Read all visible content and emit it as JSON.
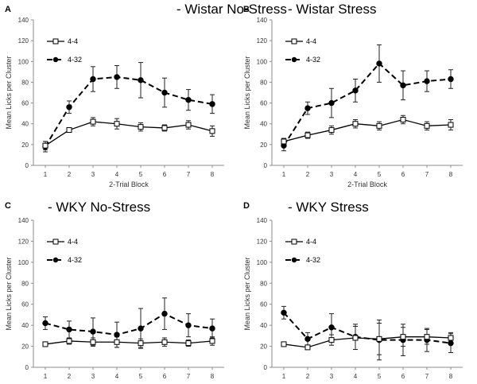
{
  "figure": {
    "chart_data": [
      {
        "panel_letter": "A",
        "type": "line",
        "title": "- Wistar No-Stress",
        "xlabel": "2-Trial Block",
        "ylabel": "Mean Licks per Cluster",
        "x": [
          1,
          2,
          3,
          4,
          5,
          6,
          7,
          8
        ],
        "ylim": [
          0,
          140
        ],
        "yticks": [
          0,
          20,
          40,
          60,
          80,
          100,
          120,
          140
        ],
        "legend_position": "top-left",
        "series": [
          {
            "name": "4-4",
            "marker": "open-square",
            "line": "solid",
            "values": [
              19,
              34,
              42,
              40,
              37,
              36,
              39,
              33
            ],
            "errors": [
              4,
              2,
              4,
              5,
              4,
              3,
              4,
              5
            ]
          },
          {
            "name": "4-32",
            "marker": "filled-circle",
            "line": "dashed",
            "values": [
              18,
              56,
              83,
              85,
              82,
              70,
              63,
              59
            ],
            "errors": [
              5,
              6,
              12,
              11,
              17,
              14,
              10,
              9
            ]
          }
        ]
      },
      {
        "panel_letter": "B",
        "type": "line",
        "title": "- Wistar Stress",
        "xlabel": "2-Trial Block",
        "ylabel": "Mean Licks per Cluster",
        "x": [
          1,
          2,
          3,
          4,
          5,
          6,
          7,
          8
        ],
        "ylim": [
          0,
          140
        ],
        "yticks": [
          0,
          20,
          40,
          60,
          80,
          100,
          120,
          140
        ],
        "legend_position": "top-left",
        "series": [
          {
            "name": "4-4",
            "marker": "open-square",
            "line": "solid",
            "values": [
              23,
              29,
              34,
              40,
              38,
              44,
              38,
              39
            ],
            "errors": [
              3,
              3,
              4,
              4,
              4,
              4,
              4,
              5
            ]
          },
          {
            "name": "4-32",
            "marker": "filled-circle",
            "line": "dashed",
            "values": [
              19,
              55,
              60,
              72,
              98,
              77,
              81,
              83
            ],
            "errors": [
              5,
              6,
              14,
              11,
              18,
              14,
              10,
              9
            ]
          }
        ]
      },
      {
        "panel_letter": "C",
        "type": "line",
        "title": "- WKY No-Stress",
        "xlabel": "",
        "ylabel": "Mean Licks per Cluster",
        "x": [
          1,
          2,
          3,
          4,
          5,
          6,
          7,
          8
        ],
        "ylim": [
          0,
          140
        ],
        "yticks": [
          0,
          20,
          40,
          60,
          80,
          100,
          120,
          140
        ],
        "legend_position": "top-left",
        "series": [
          {
            "name": "4-4",
            "marker": "open-square",
            "line": "solid",
            "values": [
              22,
              25,
              24,
              24,
              23,
              24,
              23,
              25
            ],
            "errors": [
              2,
              3,
              4,
              5,
              4,
              4,
              3,
              4
            ]
          },
          {
            "name": "4-32",
            "marker": "filled-circle",
            "line": "dashed",
            "values": [
              42,
              36,
              34,
              31,
              37,
              51,
              40,
              37
            ],
            "errors": [
              6,
              8,
              13,
              12,
              19,
              15,
              11,
              9
            ]
          }
        ]
      },
      {
        "panel_letter": "D",
        "type": "line",
        "title": "- WKY Stress",
        "xlabel": "",
        "ylabel": "Mean Licks per Cluster",
        "x": [
          1,
          2,
          3,
          4,
          5,
          6,
          7,
          8
        ],
        "ylim": [
          0,
          140
        ],
        "yticks": [
          0,
          20,
          40,
          60,
          80,
          100,
          120,
          140
        ],
        "legend_position": "top-left",
        "series": [
          {
            "name": "4-4",
            "marker": "open-square",
            "line": "solid",
            "values": [
              22,
              19,
              26,
              28,
              27,
              29,
              29,
              28
            ],
            "errors": [
              2,
              2,
              5,
              11,
              15,
              9,
              7,
              5
            ]
          },
          {
            "name": "4-32",
            "marker": "filled-circle",
            "line": "dashed",
            "values": [
              52,
              27,
              38,
              29,
              26,
              26,
              26,
              23
            ],
            "errors": [
              6,
              6,
              13,
              12,
              19,
              15,
              11,
              9
            ]
          }
        ]
      }
    ]
  }
}
